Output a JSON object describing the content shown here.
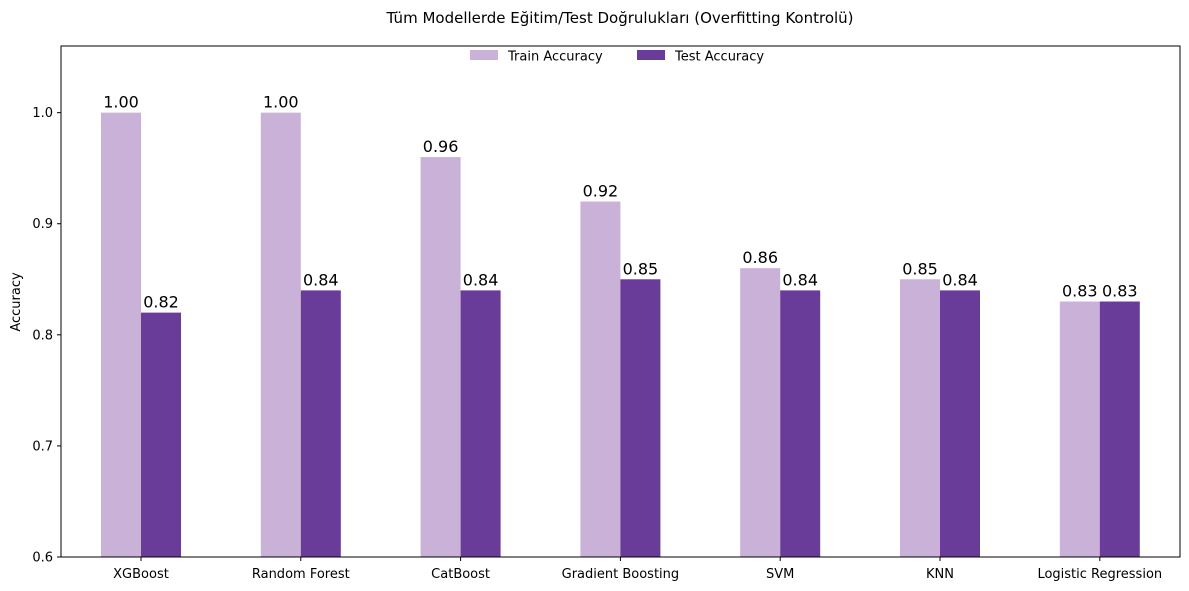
{
  "chart_data": {
    "type": "bar",
    "title": "Tüm Modellerde Eğitim/Test Doğrulukları (Overfitting Kontrolü)",
    "xlabel": "",
    "ylabel": "Accuracy",
    "ylim": [
      0.6,
      1.06
    ],
    "yticks": [
      0.6,
      0.7,
      0.8,
      0.9,
      1.0
    ],
    "ytick_labels": [
      "0.6",
      "0.7",
      "0.8",
      "0.9",
      "1.0"
    ],
    "grid": false,
    "legend_position": "top-center",
    "categories": [
      "XGBoost",
      "Random Forest",
      "CatBoost",
      "Gradient Boosting",
      "SVM",
      "KNN",
      "Logistic Regression"
    ],
    "series": [
      {
        "name": "Train Accuracy",
        "color": "#c9b1d7",
        "values": [
          1.0,
          1.0,
          0.96,
          0.92,
          0.86,
          0.85,
          0.83
        ],
        "labels": [
          "1.00",
          "1.00",
          "0.96",
          "0.92",
          "0.86",
          "0.85",
          "0.83"
        ]
      },
      {
        "name": "Test Accuracy",
        "color": "#6a3c99",
        "values": [
          0.82,
          0.84,
          0.84,
          0.85,
          0.84,
          0.84,
          0.83
        ],
        "labels": [
          "0.82",
          "0.84",
          "0.84",
          "0.85",
          "0.84",
          "0.84",
          "0.83"
        ]
      }
    ]
  }
}
